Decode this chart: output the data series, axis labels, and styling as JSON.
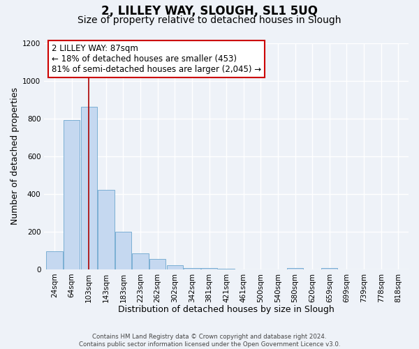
{
  "title": "2, LILLEY WAY, SLOUGH, SL1 5UQ",
  "subtitle": "Size of property relative to detached houses in Slough",
  "xlabel": "Distribution of detached houses by size in Slough",
  "ylabel": "Number of detached properties",
  "footer_lines": [
    "Contains HM Land Registry data © Crown copyright and database right 2024.",
    "Contains public sector information licensed under the Open Government Licence v3.0."
  ],
  "bin_labels": [
    "24sqm",
    "64sqm",
    "103sqm",
    "143sqm",
    "183sqm",
    "223sqm",
    "262sqm",
    "302sqm",
    "342sqm",
    "381sqm",
    "421sqm",
    "461sqm",
    "500sqm",
    "540sqm",
    "580sqm",
    "620sqm",
    "659sqm",
    "699sqm",
    "739sqm",
    "778sqm",
    "818sqm"
  ],
  "bar_heights": [
    95,
    790,
    860,
    420,
    200,
    85,
    55,
    20,
    8,
    5,
    2,
    1,
    0,
    0,
    8,
    0,
    8,
    0,
    0,
    0,
    0
  ],
  "bar_color": "#c5d8f0",
  "bar_edgecolor": "#7bafd4",
  "vline_x_idx": 2,
  "vline_color": "#aa0000",
  "annotation_title": "2 LILLEY WAY: 87sqm",
  "annotation_line1": "← 18% of detached houses are smaller (453)",
  "annotation_line2": "81% of semi-detached houses are larger (2,045) →",
  "annotation_box_edgecolor": "#cc0000",
  "ylim": [
    0,
    1200
  ],
  "yticks": [
    0,
    200,
    400,
    600,
    800,
    1000,
    1200
  ],
  "background_color": "#eef2f8",
  "grid_color": "#ffffff",
  "title_fontsize": 12,
  "subtitle_fontsize": 10,
  "annotation_fontsize": 8.5,
  "axis_label_fontsize": 9,
  "tick_fontsize": 7.5
}
